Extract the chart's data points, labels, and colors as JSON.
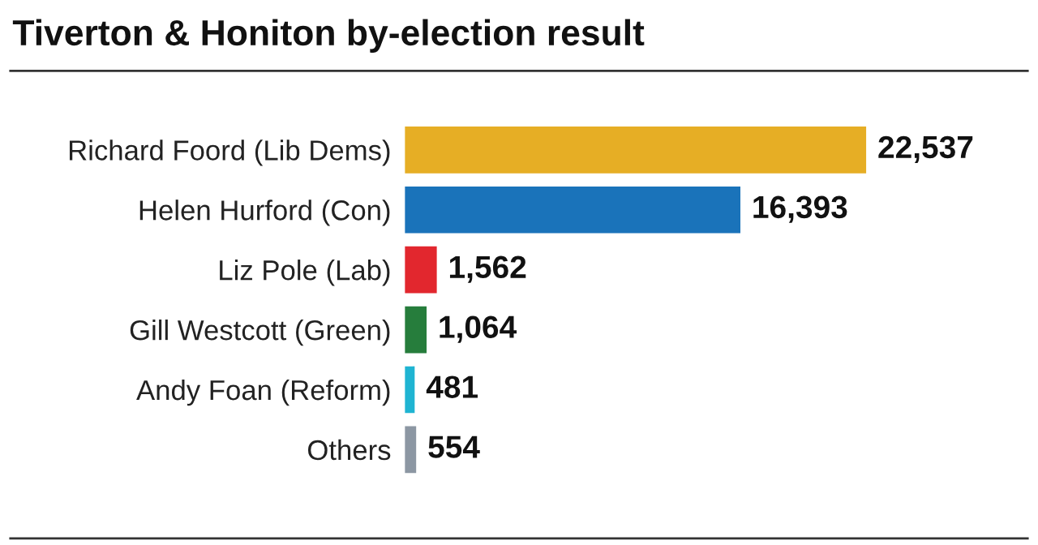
{
  "chart_data": {
    "type": "bar",
    "orientation": "horizontal",
    "title": "Tiverton & Honiton by-election result",
    "categories": [
      "Richard Foord (Lib Dems)",
      "Helen Hurford (Con)",
      "Liz Pole (Lab)",
      "Gill Westcott (Green)",
      "Andy Foan (Reform)",
      "Others"
    ],
    "values": [
      22537,
      16393,
      1562,
      1064,
      481,
      554
    ],
    "colors": [
      "#e6ae25",
      "#1a73ba",
      "#e2272e",
      "#267d3c",
      "#1fb4d2",
      "#8c97a3"
    ],
    "value_labels": [
      "22,537",
      "16,393",
      "1,562",
      "1,064",
      "481",
      "554"
    ],
    "grid": false,
    "legend": false
  }
}
